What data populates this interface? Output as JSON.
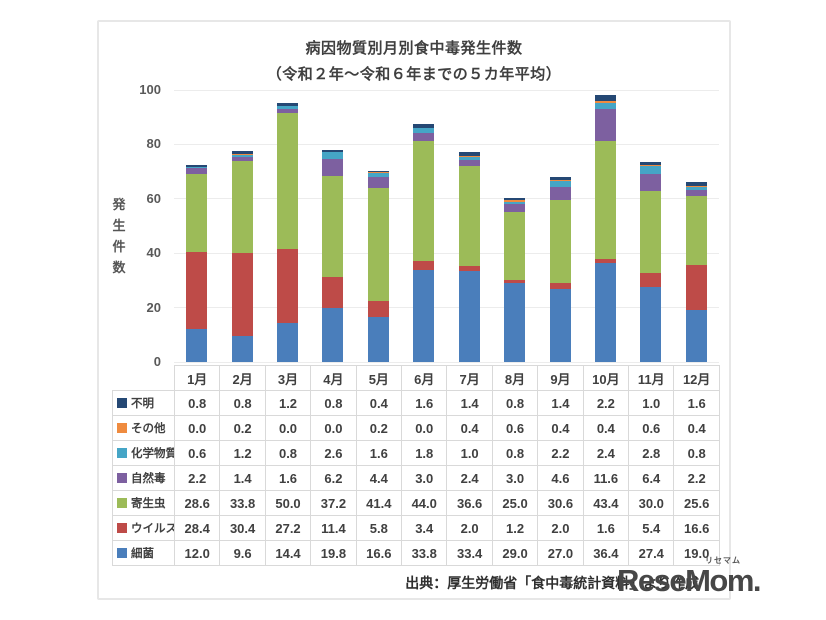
{
  "chart": {
    "title": "病因物質別月別食中毒発生件数",
    "subtitle": "（令和２年～令和６年までの５カ年平均）",
    "y_axis_label": "発生件数"
  },
  "chart_data": {
    "type": "bar",
    "stacked": true,
    "title": "病因物質別月別食中毒発生件数（令和２年～令和６年までの５カ年平均）",
    "xlabel": "",
    "ylabel": "発生件数",
    "ylim": [
      0,
      100
    ],
    "yticks": [
      0,
      20,
      40,
      60,
      80,
      100
    ],
    "grid": true,
    "legend_position": "table-left",
    "categories": [
      "1月",
      "2月",
      "3月",
      "4月",
      "5月",
      "6月",
      "7月",
      "8月",
      "9月",
      "10月",
      "11月",
      "12月"
    ],
    "series": [
      {
        "name": "不明",
        "color": "#254874",
        "values": [
          0.8,
          0.8,
          1.2,
          0.8,
          0.4,
          1.6,
          1.4,
          0.8,
          1.4,
          2.2,
          1.0,
          1.6
        ]
      },
      {
        "name": "その他",
        "color": "#EF8B3F",
        "values": [
          0.0,
          0.2,
          0.0,
          0.0,
          0.2,
          0.0,
          0.4,
          0.6,
          0.4,
          0.4,
          0.6,
          0.4
        ]
      },
      {
        "name": "化学物質",
        "color": "#45A5C6",
        "values": [
          0.6,
          1.2,
          0.8,
          2.6,
          1.6,
          1.8,
          1.0,
          0.8,
          2.2,
          2.4,
          2.8,
          0.8
        ]
      },
      {
        "name": "自然毒",
        "color": "#7D60A0",
        "values": [
          2.2,
          1.4,
          1.6,
          6.2,
          4.4,
          3.0,
          2.4,
          3.0,
          4.6,
          11.6,
          6.4,
          2.2
        ]
      },
      {
        "name": "寄生虫",
        "color": "#9CBB58",
        "values": [
          28.6,
          33.8,
          50.0,
          37.2,
          41.4,
          44.0,
          36.6,
          25.0,
          30.6,
          43.4,
          30.0,
          25.6
        ]
      },
      {
        "name": "ウイルス",
        "color": "#BE4B48",
        "values": [
          28.4,
          30.4,
          27.2,
          11.4,
          5.8,
          3.4,
          2.0,
          1.2,
          2.0,
          1.6,
          5.4,
          16.6
        ]
      },
      {
        "name": "細菌",
        "color": "#4A7EBB",
        "values": [
          12.0,
          9.6,
          14.4,
          19.8,
          16.6,
          33.8,
          33.4,
          29.0,
          27.0,
          36.4,
          27.4,
          19.0
        ]
      }
    ],
    "stacking_order_bottom_to_top": [
      "細菌",
      "ウイルス",
      "寄生虫",
      "自然毒",
      "化学物質",
      "その他",
      "不明"
    ]
  },
  "footer": {
    "source": "出典：厚生労働省「食中毒統計資料」より作成"
  },
  "logo": {
    "text": "ReseMom.",
    "ruby": "リセマム"
  }
}
